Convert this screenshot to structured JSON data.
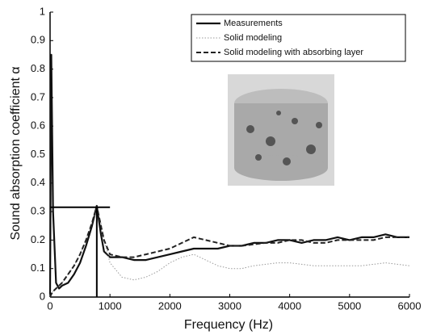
{
  "chart_data": {
    "type": "line",
    "xlabel": "Frequency (Hz)",
    "ylabel": "Sound absorption coefficient α",
    "x": [
      0,
      20,
      50,
      100,
      150,
      200,
      300,
      400,
      500,
      600,
      700,
      780,
      850,
      900,
      1000,
      1200,
      1400,
      1600,
      1800,
      2000,
      2200,
      2400,
      2600,
      2800,
      3000,
      3200,
      3400,
      3600,
      3800,
      4000,
      4200,
      4400,
      4600,
      4800,
      5000,
      5200,
      5400,
      5600,
      5800,
      6000
    ],
    "series": [
      {
        "name": "Measurements",
        "color": "#111111",
        "dash": "solid",
        "values": [
          0.01,
          0.85,
          0.3,
          0.05,
          0.03,
          0.04,
          0.05,
          0.08,
          0.12,
          0.18,
          0.25,
          0.32,
          0.22,
          0.16,
          0.14,
          0.14,
          0.13,
          0.13,
          0.14,
          0.15,
          0.16,
          0.17,
          0.17,
          0.17,
          0.18,
          0.18,
          0.19,
          0.19,
          0.2,
          0.2,
          0.19,
          0.2,
          0.2,
          0.21,
          0.2,
          0.21,
          0.21,
          0.22,
          0.21,
          0.21
        ]
      },
      {
        "name": "Solid modeling",
        "color": "#999999",
        "dash": "dotted",
        "values": [
          0,
          0.01,
          0.02,
          0.03,
          0.04,
          0.05,
          0.08,
          0.11,
          0.15,
          0.2,
          0.26,
          0.31,
          0.26,
          0.2,
          0.12,
          0.07,
          0.06,
          0.07,
          0.09,
          0.12,
          0.14,
          0.15,
          0.13,
          0.11,
          0.1,
          0.1,
          0.11,
          0.115,
          0.12,
          0.12,
          0.115,
          0.11,
          0.11,
          0.11,
          0.11,
          0.11,
          0.115,
          0.12,
          0.115,
          0.11
        ]
      },
      {
        "name": "Solid modeling with absorbing layer",
        "color": "#222222",
        "dash": "dashed",
        "values": [
          0,
          0.01,
          0.02,
          0.03,
          0.04,
          0.05,
          0.08,
          0.11,
          0.15,
          0.2,
          0.26,
          0.32,
          0.25,
          0.2,
          0.15,
          0.14,
          0.14,
          0.15,
          0.16,
          0.17,
          0.19,
          0.21,
          0.2,
          0.19,
          0.18,
          0.18,
          0.185,
          0.19,
          0.19,
          0.2,
          0.2,
          0.19,
          0.19,
          0.2,
          0.2,
          0.2,
          0.2,
          0.21,
          0.21,
          0.21
        ]
      }
    ],
    "peak": {
      "x": 780,
      "y": 0.315
    },
    "xlim": [
      0,
      6000
    ],
    "xticks": [
      0,
      1000,
      2000,
      3000,
      4000,
      5000,
      6000
    ],
    "ylim": [
      0,
      1
    ],
    "yticks": [
      0,
      0.1,
      0.2,
      0.3,
      0.4,
      0.5,
      0.6,
      0.7,
      0.8,
      0.9,
      1
    ],
    "legend": "top-right"
  }
}
